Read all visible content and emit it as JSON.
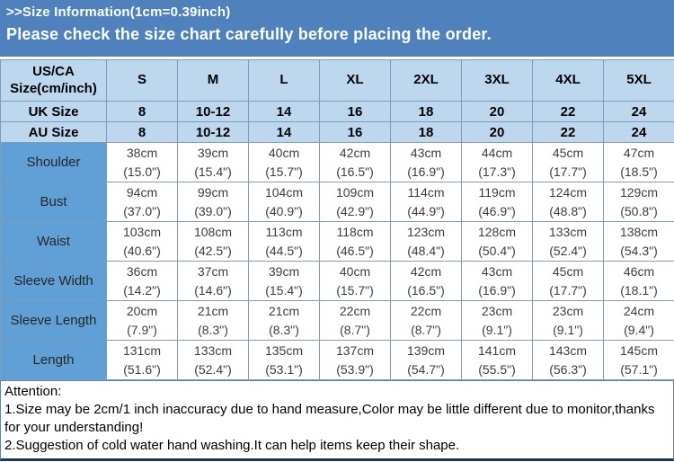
{
  "banner": {
    "title": ">>Size Information(1cm=0.39inch)",
    "subtitle": "Please check the size chart carefully before placing the order."
  },
  "colors": {
    "banner_bg": "#4F81BD",
    "header_row_bg": "#BDD7EE",
    "row_label_bg": "#61A0D7",
    "table_border": "#7F9DB9",
    "outer_border": "#4F81BD",
    "bottom_rule": "#17365D",
    "banner_text": "#FFFFFF",
    "cell_text": "#3D3D3D"
  },
  "chart_data": {
    "type": "table",
    "title": "Size Information (1cm=0.39inch)",
    "columns": [
      "US/CA Size(cm/inch)",
      "S",
      "M",
      "L",
      "XL",
      "2XL",
      "3XL",
      "4XL",
      "5XL"
    ],
    "size_rows": [
      {
        "label": "UK Size",
        "values": [
          "8",
          "10-12",
          "14",
          "16",
          "18",
          "20",
          "22",
          "24"
        ]
      },
      {
        "label": "AU Size",
        "values": [
          "8",
          "10-12",
          "14",
          "16",
          "18",
          "20",
          "22",
          "24"
        ]
      }
    ],
    "measure_rows": [
      {
        "label": "Shoulder",
        "values": [
          {
            "cm": "38cm",
            "inch": "(15.0\")"
          },
          {
            "cm": "39cm",
            "inch": "(15.4\")"
          },
          {
            "cm": "40cm",
            "inch": "(15.7\")"
          },
          {
            "cm": "42cm",
            "inch": "(16.5\")"
          },
          {
            "cm": "43cm",
            "inch": "(16.9\")"
          },
          {
            "cm": "44cm",
            "inch": "(17.3\")"
          },
          {
            "cm": "45cm",
            "inch": "(17.7\")"
          },
          {
            "cm": "47cm",
            "inch": "(18.5\")"
          }
        ]
      },
      {
        "label": "Bust",
        "values": [
          {
            "cm": "94cm",
            "inch": "(37.0\")"
          },
          {
            "cm": "99cm",
            "inch": "(39.0\")"
          },
          {
            "cm": "104cm",
            "inch": "(40.9\")"
          },
          {
            "cm": "109cm",
            "inch": "(42.9\")"
          },
          {
            "cm": "114cm",
            "inch": "(44.9\")"
          },
          {
            "cm": "119cm",
            "inch": "(46.9\")"
          },
          {
            "cm": "124cm",
            "inch": "(48.8\")"
          },
          {
            "cm": "129cm",
            "inch": "(50.8\")"
          }
        ]
      },
      {
        "label": "Waist",
        "values": [
          {
            "cm": "103cm",
            "inch": "(40.6\")"
          },
          {
            "cm": "108cm",
            "inch": "(42.5\")"
          },
          {
            "cm": "113cm",
            "inch": "(44.5\")"
          },
          {
            "cm": "118cm",
            "inch": "(46.5\")"
          },
          {
            "cm": "123cm",
            "inch": "(48.4\")"
          },
          {
            "cm": "128cm",
            "inch": "(50.4\")"
          },
          {
            "cm": "133cm",
            "inch": "(52.4\")"
          },
          {
            "cm": "138cm",
            "inch": "(54.3\")"
          }
        ]
      },
      {
        "label": "Sleeve Width",
        "values": [
          {
            "cm": "36cm",
            "inch": "(14.2\")"
          },
          {
            "cm": "37cm",
            "inch": "(14.6\")"
          },
          {
            "cm": "39cm",
            "inch": "(15.4\")"
          },
          {
            "cm": "40cm",
            "inch": "(15.7\")"
          },
          {
            "cm": "42cm",
            "inch": "(16.5\")"
          },
          {
            "cm": "43cm",
            "inch": "(16.9\")"
          },
          {
            "cm": "45cm",
            "inch": "(17.7\")"
          },
          {
            "cm": "46cm",
            "inch": "(18.1\")"
          }
        ]
      },
      {
        "label": "Sleeve Length",
        "values": [
          {
            "cm": "20cm",
            "inch": "(7.9\")"
          },
          {
            "cm": "21cm",
            "inch": "(8.3\")"
          },
          {
            "cm": "21cm",
            "inch": "(8.3\")"
          },
          {
            "cm": "22cm",
            "inch": "(8.7\")"
          },
          {
            "cm": "22cm",
            "inch": "(8.7\")"
          },
          {
            "cm": "23cm",
            "inch": "(9.1\")"
          },
          {
            "cm": "23cm",
            "inch": "(9.1\")"
          },
          {
            "cm": "24cm",
            "inch": "(9.4\")"
          }
        ]
      },
      {
        "label": "Length",
        "values": [
          {
            "cm": "131cm",
            "inch": "(51.6\")"
          },
          {
            "cm": "133cm",
            "inch": "(52.4\")"
          },
          {
            "cm": "135cm",
            "inch": "(53.1\")"
          },
          {
            "cm": "137cm",
            "inch": "(53.9\")"
          },
          {
            "cm": "139cm",
            "inch": "(54.7\")"
          },
          {
            "cm": "141cm",
            "inch": "(55.5\")"
          },
          {
            "cm": "143cm",
            "inch": "(56.3\")"
          },
          {
            "cm": "145cm",
            "inch": "(57.1\")"
          }
        ]
      }
    ]
  },
  "attention": {
    "heading": "Attention:",
    "note1": "1.Size may be 2cm/1 inch inaccuracy due to hand measure,Color may be little different due to monitor,thanks for your understanding!",
    "note2": "2.Suggestion of cold water hand washing.It can help items keep their shape."
  }
}
